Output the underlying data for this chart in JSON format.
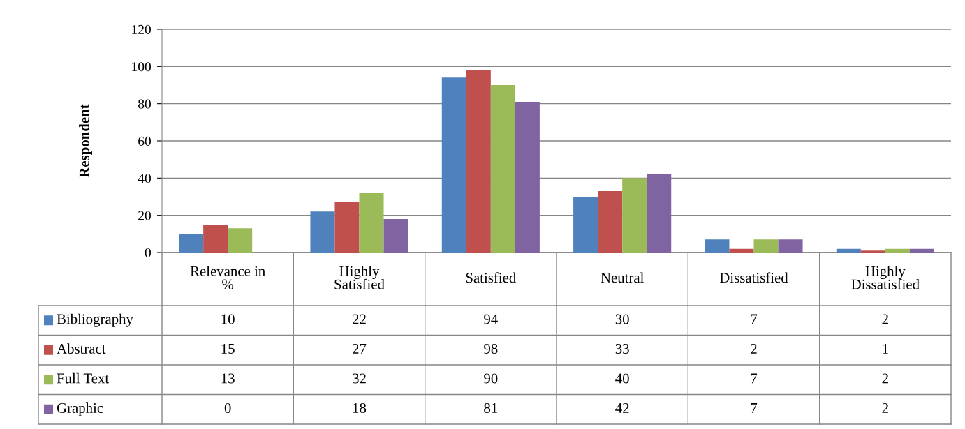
{
  "chart_data": {
    "type": "bar",
    "ylabel": "Respondent",
    "categories": [
      "Relevance in\n%",
      "Highly\nSatisfied",
      "Satisfied",
      "Neutral",
      "Dissatisfied",
      "Highly\nDissatisfied"
    ],
    "series": [
      {
        "name": "Bibliography",
        "color": "#4f81bd",
        "values": [
          10,
          22,
          94,
          30,
          7,
          2
        ]
      },
      {
        "name": "Abstract",
        "color": "#c0504d",
        "values": [
          15,
          27,
          98,
          33,
          2,
          1
        ]
      },
      {
        "name": "Full Text",
        "color": "#9bbb59",
        "values": [
          13,
          32,
          90,
          40,
          7,
          2
        ]
      },
      {
        "name": "Graphic",
        "color": "#8064a2",
        "values": [
          0,
          18,
          81,
          42,
          7,
          2
        ]
      }
    ],
    "ylim": [
      0,
      120
    ],
    "yticks": [
      0,
      20,
      40,
      60,
      80,
      100,
      120
    ],
    "grid": "y",
    "data_labels": true,
    "legend": "bottom left"
  }
}
